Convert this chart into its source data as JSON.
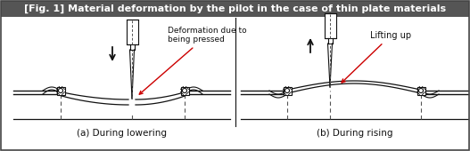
{
  "title": "[Fig. 1] Material deformation by the pilot in the case of thin plate materials",
  "title_bg": "#555555",
  "title_color": "#ffffff",
  "title_fontsize": 8.0,
  "bg_color": "#ffffff",
  "border_color": "#444444",
  "label_a": "(a) During lowering",
  "label_b": "(b) During rising",
  "anno_a": "Deformation due to\nbeing pressed",
  "anno_b": "Lifting up",
  "arrow_color": "#cc0000",
  "line_color": "#111111",
  "dashed_color": "#555555",
  "figw": 5.27,
  "figh": 1.7,
  "dpi": 100
}
